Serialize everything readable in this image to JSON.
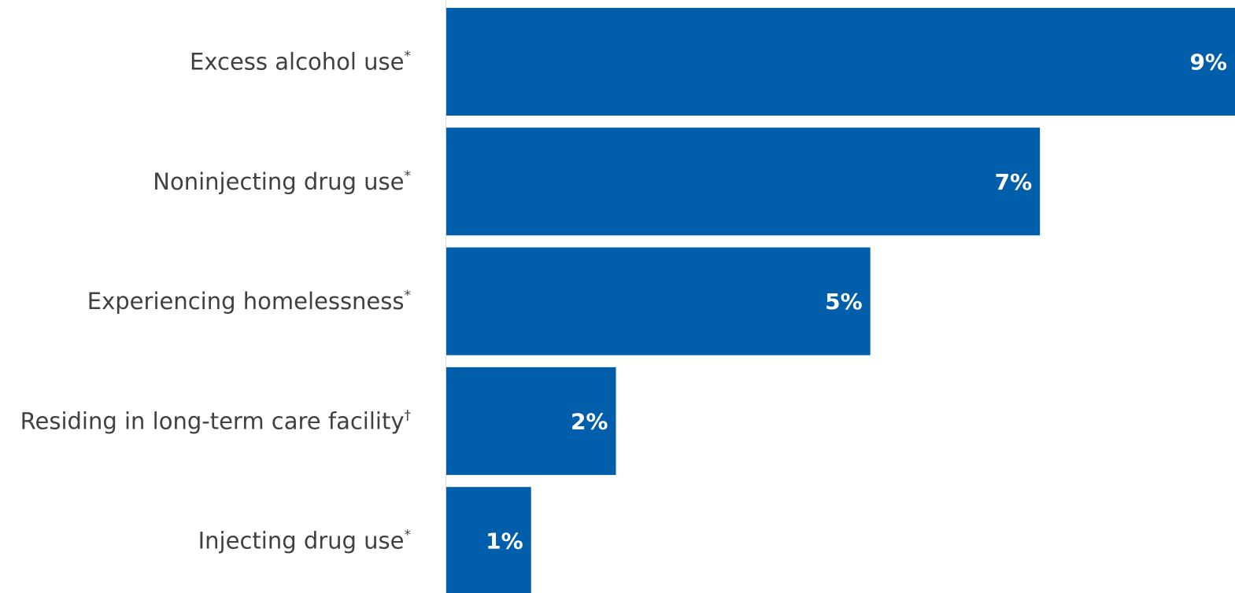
{
  "chart_data": {
    "type": "bar",
    "orientation": "horizontal",
    "categories": [
      {
        "text": "Excess alcohol use",
        "mark": "*"
      },
      {
        "text": "Noninjecting drug use",
        "mark": "*"
      },
      {
        "text": "Experiencing homelessness",
        "mark": "*"
      },
      {
        "text": "Residing in long-term care facility",
        "mark": "†"
      },
      {
        "text": "Injecting drug use",
        "mark": "*"
      }
    ],
    "values": [
      9.3,
      7.0,
      5.0,
      2.0,
      1.0
    ],
    "data_labels": [
      "9%",
      "7%",
      "5%",
      "2%",
      "1%"
    ],
    "value_unit": "%",
    "xlim": [
      0,
      9.3
    ],
    "bar_color": "#005EAA",
    "label_color": "#404040",
    "data_label_color": "#ffffff",
    "grid": false,
    "legend": "none"
  }
}
